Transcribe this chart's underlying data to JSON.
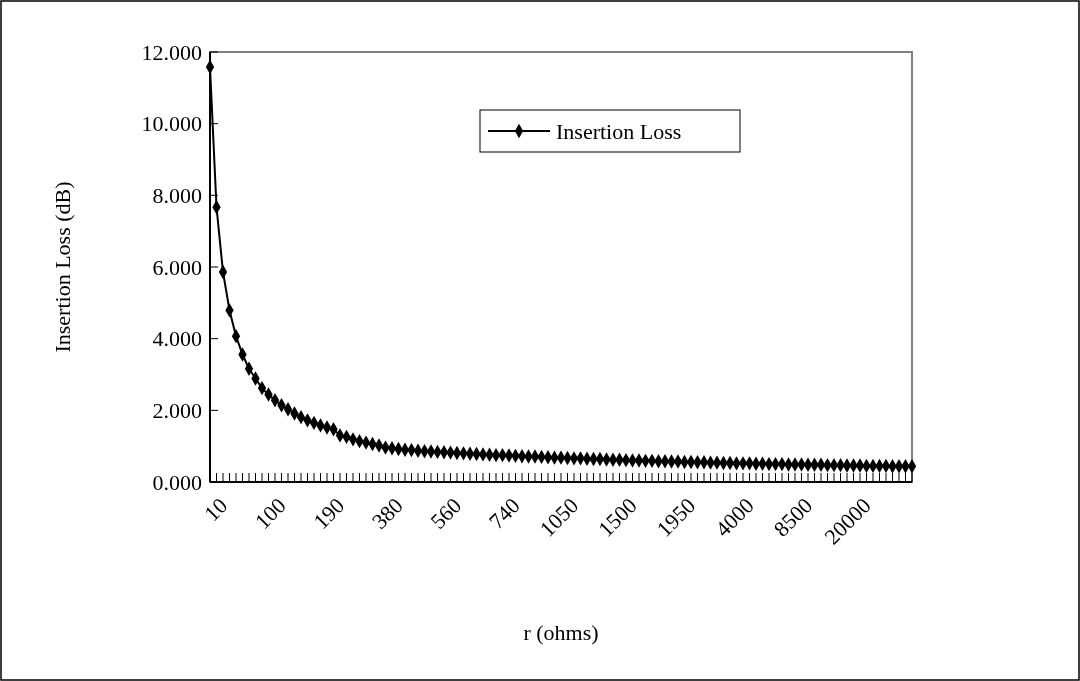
{
  "chart_data": {
    "type": "line",
    "xlabel": "r (ohms)",
    "ylabel": "Insertion Loss (dB)",
    "categories": [
      "10",
      null,
      null,
      null,
      null,
      null,
      null,
      null,
      null,
      "100",
      null,
      null,
      null,
      null,
      null,
      null,
      null,
      null,
      "190",
      null,
      null,
      null,
      null,
      null,
      null,
      null,
      null,
      "380",
      null,
      null,
      null,
      null,
      null,
      null,
      null,
      null,
      "560",
      null,
      null,
      null,
      null,
      null,
      null,
      null,
      null,
      "740",
      null,
      null,
      null,
      null,
      null,
      null,
      null,
      null,
      "1050",
      null,
      null,
      null,
      null,
      null,
      null,
      null,
      null,
      "1500",
      null,
      null,
      null,
      null,
      null,
      null,
      null,
      null,
      "1950",
      null,
      null,
      null,
      null,
      null,
      null,
      null,
      null,
      "4000",
      null,
      null,
      null,
      null,
      null,
      null,
      null,
      null,
      "8500",
      null,
      null,
      null,
      null,
      null,
      null,
      null,
      null,
      "20000",
      null,
      null,
      null,
      null,
      null,
      null,
      null,
      null,
      null
    ],
    "series": [
      {
        "name": "Insertion Loss",
        "color": "#000000",
        "values": [
          11.58,
          7.67,
          5.86,
          4.79,
          4.07,
          3.56,
          3.16,
          2.89,
          2.62,
          2.44,
          2.28,
          2.14,
          2.03,
          1.91,
          1.81,
          1.72,
          1.65,
          1.58,
          1.52,
          1.47,
          1.3,
          1.26,
          1.19,
          1.14,
          1.1,
          1.06,
          1.02,
          0.96,
          0.94,
          0.92,
          0.9,
          0.89,
          0.87,
          0.86,
          0.85,
          0.84,
          0.83,
          0.82,
          0.81,
          0.8,
          0.79,
          0.78,
          0.77,
          0.76,
          0.75,
          0.75,
          0.74,
          0.73,
          0.72,
          0.71,
          0.71,
          0.7,
          0.69,
          0.68,
          0.68,
          0.67,
          0.66,
          0.66,
          0.65,
          0.64,
          0.64,
          0.63,
          0.62,
          0.62,
          0.61,
          0.6,
          0.6,
          0.59,
          0.59,
          0.58,
          0.58,
          0.57,
          0.57,
          0.56,
          0.56,
          0.55,
          0.55,
          0.54,
          0.54,
          0.53,
          0.53,
          0.52,
          0.52,
          0.52,
          0.51,
          0.51,
          0.5,
          0.5,
          0.5,
          0.49,
          0.49,
          0.49,
          0.48,
          0.48,
          0.48,
          0.47,
          0.47,
          0.47,
          0.46,
          0.46,
          0.46,
          0.45,
          0.45,
          0.45,
          0.45,
          0.44,
          0.44,
          0.44,
          0.44
        ]
      }
    ],
    "ylim": [
      0,
      12
    ],
    "yticks": [
      {
        "value": 0,
        "label": "0.000"
      },
      {
        "value": 2,
        "label": "2.000"
      },
      {
        "value": 4,
        "label": "4.000"
      },
      {
        "value": 6,
        "label": "6.000"
      },
      {
        "value": 8,
        "label": "8.000"
      },
      {
        "value": 10,
        "label": "10.000"
      },
      {
        "value": 12,
        "label": "12.000"
      }
    ],
    "marker": "diamond",
    "line_style": "solid",
    "legend": "top right",
    "grid": false
  }
}
